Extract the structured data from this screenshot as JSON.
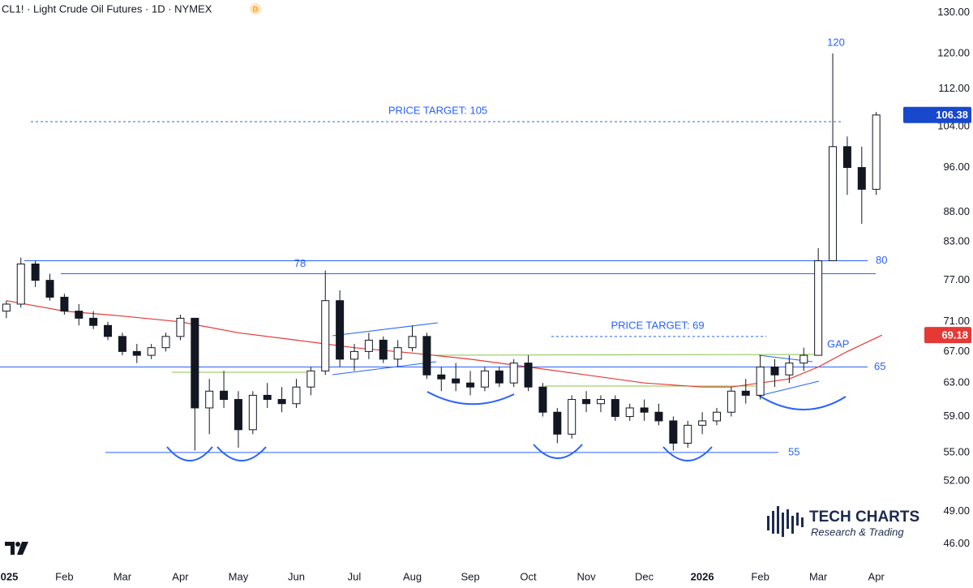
{
  "chart_data": {
    "type": "candlestick",
    "title": "CL1! · Light Crude Oil Futures · 1D · NYMEX",
    "badge": "D",
    "log_y": true,
    "ylim": [
      43.9,
      133.2
    ],
    "yticks": [
      {
        "value": 46,
        "label": "46.00"
      },
      {
        "value": 49,
        "label": "49.00"
      },
      {
        "value": 52,
        "label": "52.00"
      },
      {
        "value": 55,
        "label": "55.00"
      },
      {
        "value": 59,
        "label": "59.00"
      },
      {
        "value": 63,
        "label": "63.00"
      },
      {
        "value": 67,
        "label": "67.00"
      },
      {
        "value": 71,
        "label": "71.00"
      },
      {
        "value": 77,
        "label": "77.00"
      },
      {
        "value": 83,
        "label": "83.00"
      },
      {
        "value": 88,
        "label": "88.00"
      },
      {
        "value": 96,
        "label": "96.00"
      },
      {
        "value": 104,
        "label": "104.00"
      },
      {
        "value": 112,
        "label": "112.00"
      },
      {
        "value": 120,
        "label": "120.00"
      },
      {
        "value": 130,
        "label": "130.00"
      }
    ],
    "xlim": [
      -0.11,
      15.41
    ],
    "xticks": [
      {
        "value": 0,
        "label": "2025"
      },
      {
        "value": 1,
        "label": "Feb"
      },
      {
        "value": 2,
        "label": "Mar"
      },
      {
        "value": 3,
        "label": "Apr"
      },
      {
        "value": 4,
        "label": "May"
      },
      {
        "value": 5,
        "label": "Jun"
      },
      {
        "value": 6,
        "label": "Jul"
      },
      {
        "value": 7,
        "label": "Aug"
      },
      {
        "value": 8,
        "label": "Sep"
      },
      {
        "value": 9,
        "label": "Oct"
      },
      {
        "value": 10,
        "label": "Nov"
      },
      {
        "value": 11,
        "label": "Dec"
      },
      {
        "value": 12,
        "label": "2026"
      },
      {
        "value": 13,
        "label": "Feb"
      },
      {
        "value": 14,
        "label": "Mar"
      },
      {
        "value": 15,
        "label": "Apr"
      }
    ],
    "up_color": "#ffffff",
    "down_color": "#131722",
    "candles": [
      [
        0.0,
        72.5,
        74,
        71.5,
        73.5
      ],
      [
        0.25,
        73.5,
        80.5,
        73,
        79.5
      ],
      [
        0.5,
        79.5,
        80,
        76,
        77
      ],
      [
        0.75,
        77,
        78,
        74,
        74.5
      ],
      [
        1.0,
        74.5,
        75,
        72,
        72.5
      ],
      [
        1.25,
        72.5,
        73.5,
        70.5,
        71.5
      ],
      [
        1.5,
        71.5,
        72.5,
        70,
        70.5
      ],
      [
        1.75,
        70.5,
        71,
        68.5,
        69
      ],
      [
        2.0,
        69,
        69.5,
        66.5,
        67
      ],
      [
        2.25,
        67,
        68,
        65.5,
        66.5
      ],
      [
        2.5,
        66.5,
        68,
        66,
        67.5
      ],
      [
        2.75,
        67.5,
        69.5,
        67,
        69
      ],
      [
        3.0,
        69,
        72,
        68.5,
        71.5
      ],
      [
        3.25,
        71.5,
        71.5,
        55.2,
        60
      ],
      [
        3.5,
        60,
        63.5,
        57,
        62
      ],
      [
        3.75,
        62,
        64.5,
        60,
        61
      ],
      [
        4.0,
        61,
        62,
        55.5,
        57.5
      ],
      [
        4.25,
        57.5,
        62,
        57,
        61.5
      ],
      [
        4.5,
        61.5,
        63,
        60,
        61
      ],
      [
        4.75,
        61,
        62.5,
        59.5,
        60.5
      ],
      [
        5.0,
        60.5,
        63.5,
        60,
        62.5
      ],
      [
        5.25,
        62.5,
        65,
        61.5,
        64.5
      ],
      [
        5.5,
        64.5,
        78.5,
        64,
        74
      ],
      [
        5.75,
        74,
        75.5,
        65,
        66
      ],
      [
        6.0,
        66,
        68,
        64.5,
        67
      ],
      [
        6.25,
        67,
        69.5,
        66,
        68.5
      ],
      [
        6.5,
        68.5,
        69,
        65.5,
        66
      ],
      [
        6.75,
        66,
        68.5,
        65,
        67.5
      ],
      [
        7.0,
        67.5,
        70.5,
        67,
        69
      ],
      [
        7.25,
        69,
        69.5,
        63.5,
        64
      ],
      [
        7.5,
        64,
        65,
        62,
        63.5
      ],
      [
        7.75,
        63.5,
        65.5,
        62,
        63
      ],
      [
        8.0,
        63,
        64.5,
        61.5,
        62.5
      ],
      [
        8.25,
        62.5,
        65,
        62,
        64.5
      ],
      [
        8.5,
        64.5,
        65,
        62.5,
        63
      ],
      [
        8.75,
        63,
        66,
        62.5,
        65.5
      ],
      [
        9.0,
        65.5,
        66.5,
        62,
        62.5
      ],
      [
        9.25,
        62.5,
        63,
        59,
        59.5
      ],
      [
        9.5,
        59.5,
        60,
        56,
        57
      ],
      [
        9.75,
        57,
        61.5,
        56.5,
        61
      ],
      [
        10.0,
        61,
        62,
        59.5,
        60.5
      ],
      [
        10.25,
        60.5,
        61.5,
        59.5,
        61
      ],
      [
        10.5,
        61,
        61.5,
        58.5,
        59
      ],
      [
        10.75,
        59,
        60.5,
        58.5,
        60
      ],
      [
        11.0,
        60,
        61,
        58.5,
        59.5
      ],
      [
        11.25,
        59.5,
        60.5,
        58,
        58.5
      ],
      [
        11.5,
        58.5,
        59,
        55.2,
        56
      ],
      [
        11.75,
        56,
        58.5,
        55.5,
        58
      ],
      [
        12.0,
        58,
        59.5,
        57,
        58.5
      ],
      [
        12.25,
        58.5,
        60,
        58,
        59.5
      ],
      [
        12.5,
        59.5,
        62.5,
        59,
        62
      ],
      [
        12.75,
        62,
        63.5,
        60.5,
        61.5
      ],
      [
        13.0,
        61.5,
        66.5,
        61,
        65
      ],
      [
        13.25,
        65,
        66,
        62.5,
        64
      ],
      [
        13.5,
        64,
        66.5,
        63,
        65.5
      ],
      [
        13.75,
        65.5,
        67.5,
        64.5,
        66.5
      ],
      [
        14.0,
        66.5,
        82,
        66.5,
        80
      ],
      [
        14.25,
        80,
        120,
        80,
        100
      ],
      [
        14.5,
        100,
        102,
        91,
        96
      ],
      [
        14.75,
        96,
        100,
        86,
        92
      ],
      [
        15.0,
        92,
        107,
        91,
        106.38
      ]
    ],
    "moving_average": {
      "color": "#e53935",
      "x": [
        0,
        1,
        2,
        3,
        4,
        5,
        6,
        7,
        8,
        9,
        10,
        11,
        12,
        12.5,
        13,
        13.5,
        14,
        14.5,
        15.1
      ],
      "values": [
        74,
        72.5,
        71.8,
        71,
        69.5,
        68.5,
        67.5,
        66.8,
        66,
        65,
        64,
        63,
        62.5,
        62.5,
        63,
        63.5,
        65,
        67,
        69.18
      ]
    },
    "levels": [
      {
        "label": "80",
        "value": 80
      },
      {
        "label": "78",
        "value": 78
      },
      {
        "label": "65",
        "value": 65
      },
      {
        "label": "55",
        "value": 55
      }
    ],
    "targets": [
      {
        "label": "PRICE TARGET: 105",
        "value": 105
      },
      {
        "label": "PRICE TARGET: 69",
        "value": 69
      }
    ],
    "gap_label": "GAP",
    "watermark": {
      "title": "TECH CHARTS",
      "subtitle": "Research & Trading"
    }
  }
}
